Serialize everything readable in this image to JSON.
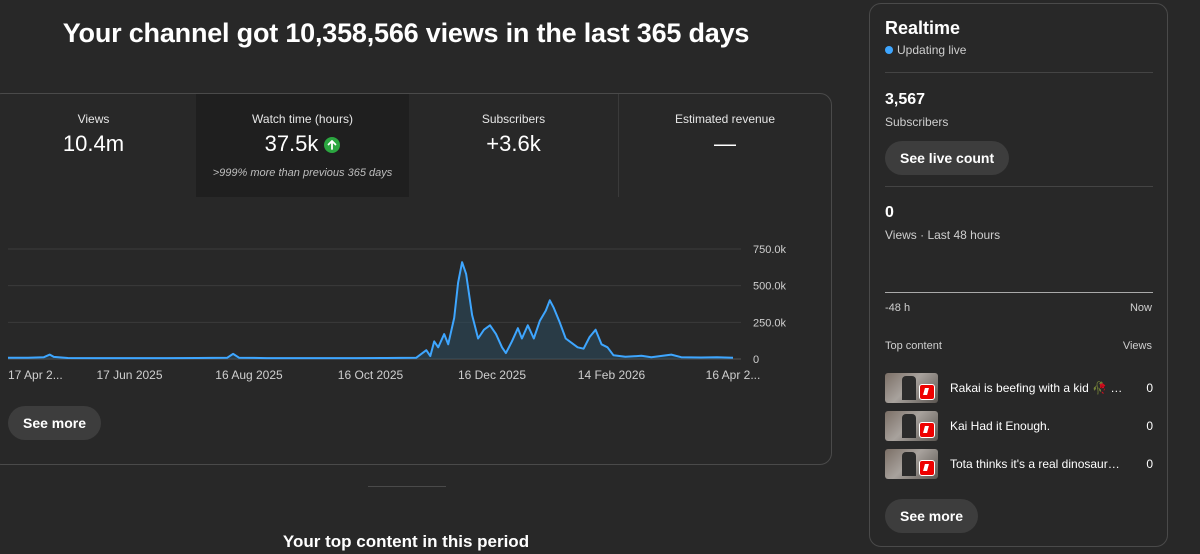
{
  "headline": "Your channel got 10,358,566 views in the last 365 days",
  "metrics": [
    {
      "label": "Views",
      "value": "10.4m"
    },
    {
      "label": "Watch time (hours)",
      "value": "37.5k",
      "trend_icon": "arrow-up-icon",
      "trend_color": "#2ba640",
      "sub": ">999% more than previous 365 days"
    },
    {
      "label": "Subscribers",
      "value": "+3.6k"
    },
    {
      "label": "Estimated revenue",
      "value": "—"
    }
  ],
  "chart_data": {
    "type": "line",
    "y_tick_labels": [
      "750.0k",
      "500.0k",
      "250.0k",
      "0"
    ],
    "y_ticks": [
      750000,
      500000,
      250000,
      0
    ],
    "ylim": [
      0,
      750000
    ],
    "x_tick_labels": [
      "17 Apr 2...",
      "17 Jun 2025",
      "16 Aug 2025",
      "16 Oct 2025",
      "16 Dec 2025",
      "14 Feb 2026",
      "16 Apr 2..."
    ],
    "x_tick_days": [
      0,
      61,
      121,
      182,
      243,
      303,
      364
    ],
    "grid": true,
    "line_color": "#3ea6ff",
    "fill_color": "#2a4a5e",
    "points": [
      [
        0,
        8000
      ],
      [
        10,
        9000
      ],
      [
        18,
        12000
      ],
      [
        21,
        30000
      ],
      [
        23,
        14000
      ],
      [
        30,
        7000
      ],
      [
        45,
        6000
      ],
      [
        60,
        6000
      ],
      [
        80,
        6000
      ],
      [
        95,
        7000
      ],
      [
        110,
        8000
      ],
      [
        113,
        35000
      ],
      [
        116,
        9000
      ],
      [
        130,
        6000
      ],
      [
        150,
        6000
      ],
      [
        175,
        6000
      ],
      [
        190,
        7000
      ],
      [
        205,
        9000
      ],
      [
        210,
        60000
      ],
      [
        212,
        20000
      ],
      [
        214,
        120000
      ],
      [
        216,
        80000
      ],
      [
        219,
        170000
      ],
      [
        221,
        100000
      ],
      [
        224,
        280000
      ],
      [
        226,
        520000
      ],
      [
        228,
        660000
      ],
      [
        230,
        580000
      ],
      [
        233,
        300000
      ],
      [
        236,
        140000
      ],
      [
        239,
        200000
      ],
      [
        242,
        230000
      ],
      [
        245,
        170000
      ],
      [
        248,
        80000
      ],
      [
        250,
        40000
      ],
      [
        253,
        120000
      ],
      [
        256,
        210000
      ],
      [
        258,
        140000
      ],
      [
        261,
        230000
      ],
      [
        264,
        140000
      ],
      [
        267,
        260000
      ],
      [
        270,
        330000
      ],
      [
        272,
        400000
      ],
      [
        274,
        350000
      ],
      [
        277,
        250000
      ],
      [
        280,
        140000
      ],
      [
        283,
        110000
      ],
      [
        286,
        80000
      ],
      [
        289,
        70000
      ],
      [
        292,
        150000
      ],
      [
        295,
        200000
      ],
      [
        298,
        100000
      ],
      [
        301,
        80000
      ],
      [
        304,
        25000
      ],
      [
        310,
        15000
      ],
      [
        318,
        22000
      ],
      [
        323,
        12000
      ],
      [
        333,
        30000
      ],
      [
        338,
        12000
      ],
      [
        348,
        10000
      ],
      [
        356,
        12000
      ],
      [
        364,
        8000
      ]
    ]
  },
  "buttons": {
    "see_more": "See more",
    "see_live_count": "See live count",
    "realtime_see_more": "See more"
  },
  "top_content_heading": "Your top content in this period",
  "realtime": {
    "title": "Realtime",
    "status": "Updating live",
    "subscribers_count": "3,567",
    "subscribers_label": "Subscribers",
    "views_count": "0",
    "views_label": "Views · Last 48 hours",
    "axis_start": "-48 h",
    "axis_end": "Now",
    "top_content_label": "Top content",
    "views_col_label": "Views",
    "items": [
      {
        "title": "Rakai is beefing with a kid 🥀 …",
        "views": "0"
      },
      {
        "title": "Kai Had it Enough.",
        "views": "0"
      },
      {
        "title": "Tota thinks it's a real dinosaur…",
        "views": "0"
      }
    ]
  }
}
